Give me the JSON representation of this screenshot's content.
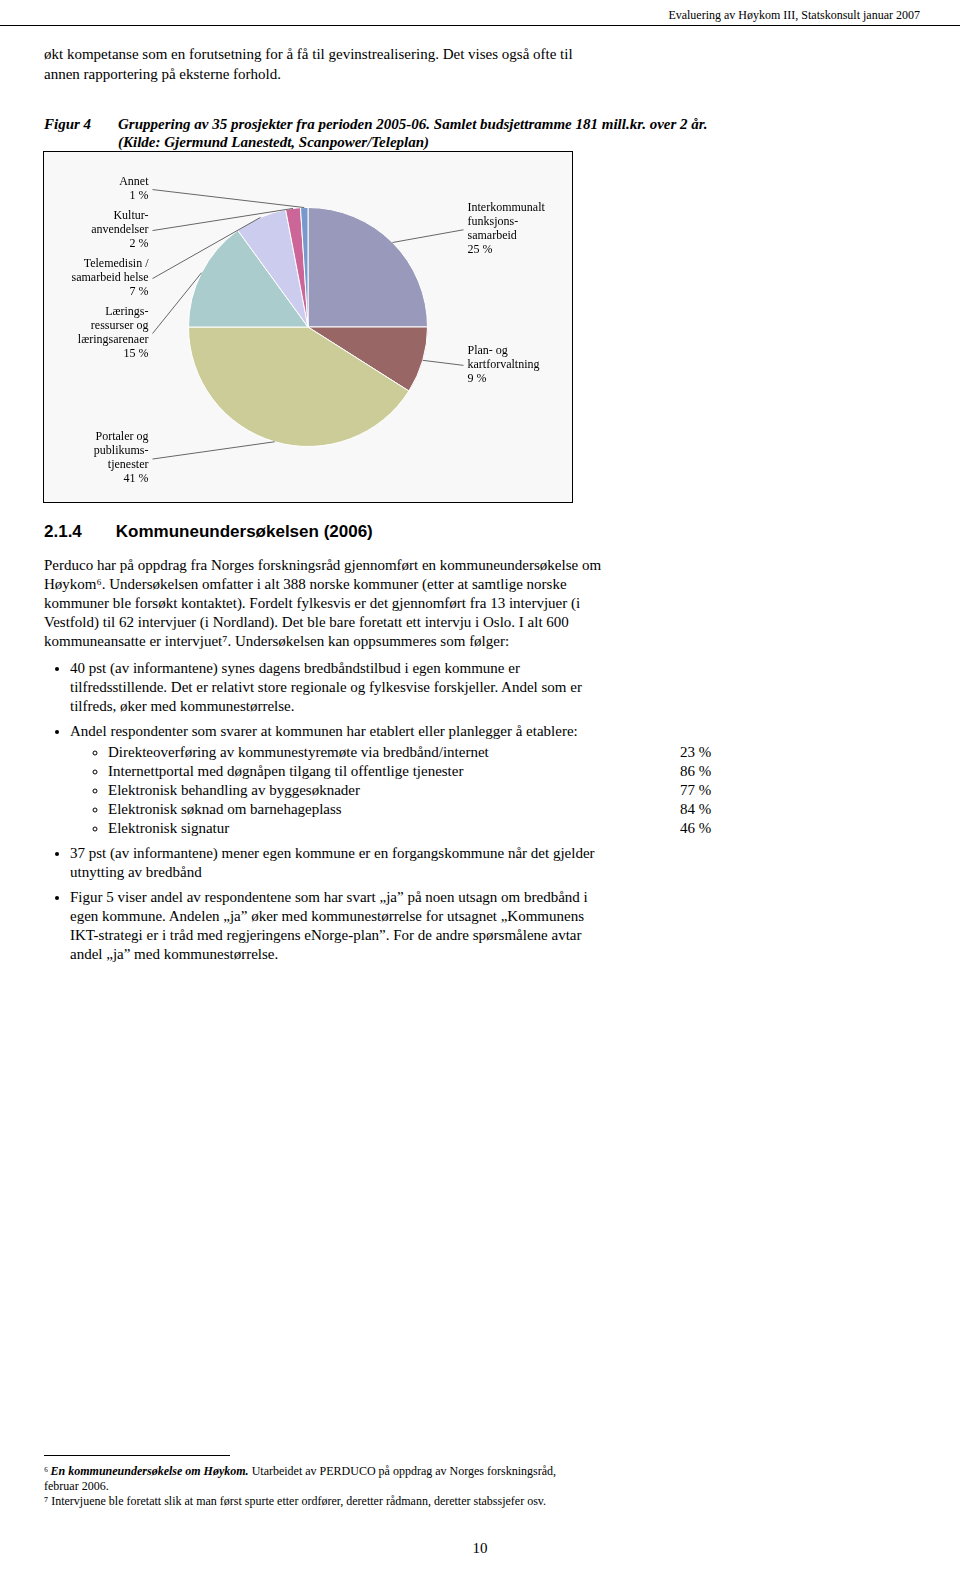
{
  "chart_data": {
    "type": "pie",
    "title": "Figur 4",
    "subtitle": [
      "Gruppering av 35 prosjekter fra perioden 2005-06. Samlet budsjettramme 181 mill.kr. over 2 år.",
      "(Kilde: Gjermund Lanestedt, Scanpower/Teleplan)"
    ],
    "categories": [
      "Interkommunalt\nfunksjons-\nsamarbeid",
      "Plan- og\nkartforvaltning",
      "Portaler og\npublikums-\ntjenester",
      "Lærings-\nressurser og\nlæringsarenaer",
      "Telemedisin /\nsamarbeid helse",
      "Kultur-\nanvendelser",
      "Annet"
    ],
    "values": [
      25,
      9,
      41,
      15,
      7,
      2,
      1
    ],
    "value_labels": [
      "25 %",
      "9 %",
      "41 %",
      "15 %",
      "7 %",
      "2 %",
      "1 %"
    ],
    "colors": [
      "#9999bb",
      "#996666",
      "#cccc99",
      "#aacccc",
      "#ccccee",
      "#cc6699",
      "#7799cc"
    ],
    "data_labels": true,
    "annotations": {
      "header": "Evaluering av Høykom III, Statskonsult januar 2007",
      "text_before": [
        "økt kompetanse som en forutsetning for å få til gevinstrealisering. Det vises også ofte til",
        "annen rapportering på eksterne forhold."
      ],
      "section_heading": "2.1.4  Kommuneundersøkelsen (2006)",
      "paragraph": [
        "Perduco har på oppdrag fra Norges forskningsråd gjennomført en kommuneundersøkelse om",
        "Høykom⁶. Undersøkelsen omfatter i alt 388 norske kommuner (etter at samtlige norske",
        "kommuner ble forsøkt kontaktet). Fordelt fylkesvis er det gjennomført fra 13 intervjuer (i",
        "Vestfold) til 62 intervjuer (i Nordland). Det ble bare foretatt ett intervju i Oslo. I alt 600",
        "kommuneansatte er intervjuet⁷. Undersøkelsen kan oppsummeres som følger:"
      ],
      "bullets": [
        {
          "lines": [
            "40 pst (av informantene) synes dagens bredbåndstilbud i egen kommune er",
            "tilfredsstillende. Det er relativt store regionale og fylkesvise forskjeller. Andel som er",
            "tilfreds, øker med kommunestørrelse."
          ]
        },
        {
          "lines": [
            "Andel respondenter som svarer at kommunen har etablert eller planlegger å etablere:"
          ],
          "sub_items": [
            {
              "text": "Direkteoverføring av kommunestyremøte via bredbånd/internet",
              "share": "23 %"
            },
            {
              "text": "Internettportal med døgnåpen tilgang til offentlige tjenester",
              "share": "86 %"
            },
            {
              "text": "Elektronisk behandling av byggesøknader",
              "share": "77 %"
            },
            {
              "text": "Elektronisk søknad om barnehageplass",
              "share": "84 %"
            },
            {
              "text": "Elektronisk signatur",
              "share": "46 %"
            }
          ]
        },
        {
          "lines": [
            "37 pst (av informantene) mener egen kommune er en forgangskommune når det gjelder",
            "utnytting av bredbånd"
          ]
        },
        {
          "lines": [
            "Figur 5 viser andel av respondentene som har svart „ja” på noen utsagn om bredbånd i",
            "egen kommune. Andelen „ja” øker med kommunestørrelse for utsagnet „Kommunens",
            "IKT-strategi er i tråd med regjeringens eNorge-plan”. For de andre spørsmålene avtar",
            "andel „ja” med kommunestørrelse."
          ]
        }
      ],
      "footnotes": [
        [
          [
            {
              "text": "⁶ "
            },
            {
              "text": "En kommuneundersøkelse om Høykom.",
              "emphasis": true
            },
            {
              "text": " Utarbeidet av PERDUCO på oppdrag av Norges forskningsråd,"
            }
          ],
          [
            {
              "text": "februar 2006."
            }
          ]
        ],
        [
          [
            {
              "text": "⁷ Intervjuene ble foretatt slik at man først spurte etter ordfører, deretter rådmann, deretter stabssjefer osv."
            }
          ]
        ]
      ],
      "page_number": "10"
    }
  }
}
